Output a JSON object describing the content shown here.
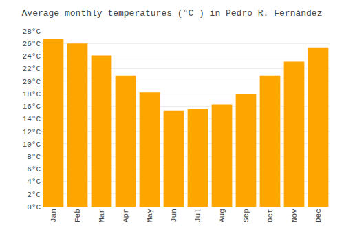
{
  "chart_data": {
    "type": "bar",
    "title": "Average monthly temperatures (°C ) in Pedro R. Fernández",
    "categories": [
      "Jan",
      "Feb",
      "Mar",
      "Apr",
      "May",
      "Jun",
      "Jul",
      "Aug",
      "Sep",
      "Oct",
      "Nov",
      "Dec"
    ],
    "values": [
      26.7,
      26.0,
      24.1,
      20.9,
      18.2,
      15.3,
      15.6,
      16.3,
      18.0,
      20.9,
      23.1,
      25.4
    ],
    "color": "#FFA500",
    "ylim": [
      0,
      28
    ],
    "yticks": [
      {
        "value": 0,
        "label": "0°C"
      },
      {
        "value": 2,
        "label": "2°C"
      },
      {
        "value": 4,
        "label": "4°C"
      },
      {
        "value": 6,
        "label": "6°C"
      },
      {
        "value": 8,
        "label": "8°C"
      },
      {
        "value": 10,
        "label": "10°C"
      },
      {
        "value": 12,
        "label": "12°C"
      },
      {
        "value": 14,
        "label": "14°C"
      },
      {
        "value": 16,
        "label": "16°C"
      },
      {
        "value": 18,
        "label": "18°C"
      },
      {
        "value": 20,
        "label": "20°C"
      },
      {
        "value": 22,
        "label": "22°C"
      },
      {
        "value": 24,
        "label": "24°C"
      },
      {
        "value": 26,
        "label": "26°C"
      },
      {
        "value": 28,
        "label": "28°C"
      }
    ],
    "grid": true
  }
}
